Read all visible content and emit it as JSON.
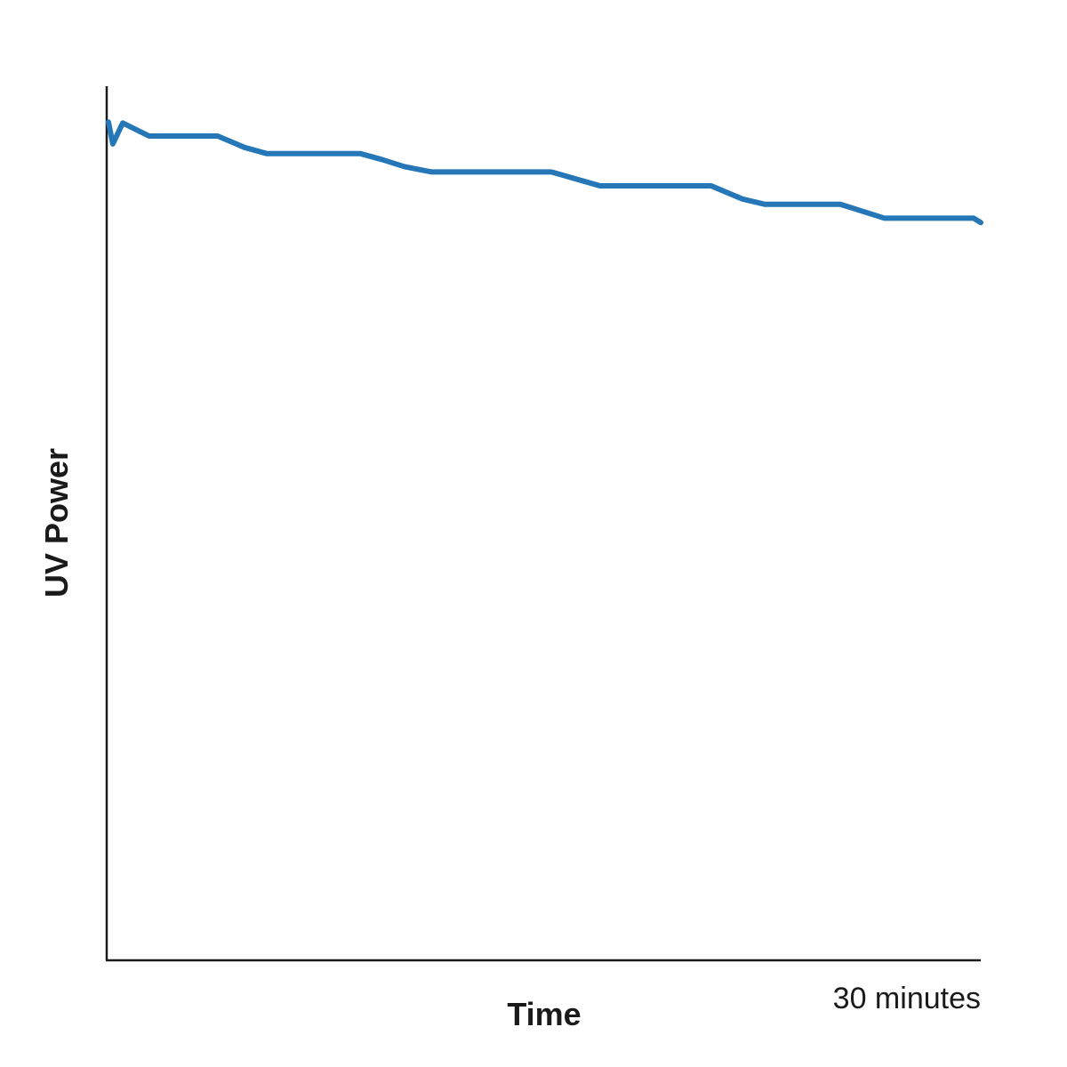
{
  "chart_data": {
    "type": "line",
    "x_label": "Time",
    "y_label": "UV Power",
    "xlim": [
      0,
      30
    ],
    "ylim": [
      0,
      100
    ],
    "xticks": [
      {
        "value": 30,
        "label": "30 minutes"
      }
    ],
    "series": [
      {
        "color": "#2577b8",
        "x": [
          0.06,
          0.21,
          0.55,
          0.85,
          1.46,
          3.81,
          4.73,
          5.49,
          8.7,
          9.46,
          10.22,
          11.14,
          15.26,
          16.94,
          20.75,
          21.82,
          22.58,
          25.18,
          26.7,
          29.76,
          30
        ],
        "values": [
          95.9,
          93.4,
          95.8,
          95.3,
          94.3,
          94.3,
          93.0,
          92.3,
          92.3,
          91.6,
          90.8,
          90.2,
          90.2,
          88.6,
          88.6,
          87.1,
          86.5,
          86.5,
          84.9,
          84.9,
          84.4
        ]
      }
    ]
  }
}
